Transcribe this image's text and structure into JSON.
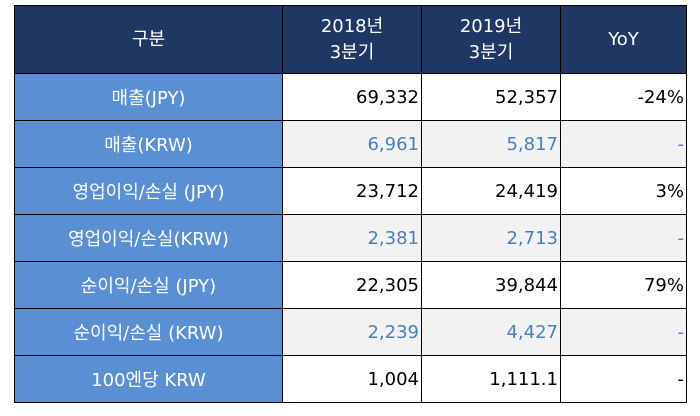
{
  "table": {
    "header": [
      "구분",
      "2018년\n3분기",
      "2019년\n3분기",
      "YoY"
    ],
    "rows": [
      [
        "매출(JPY)",
        "69,332",
        "52,357",
        "-24%"
      ],
      [
        "매출(KRW)",
        "6,961",
        "5,817",
        "-"
      ],
      [
        "영업이익/손실 (JPY)",
        "23,712",
        "24,419",
        "3%"
      ],
      [
        "영업이익/손실(KRW)",
        "2,381",
        "2,713",
        "-"
      ],
      [
        "순이익/손실 (JPY)",
        "22,305",
        "39,844",
        "79%"
      ],
      [
        "순이익/손실 (KRW)",
        "2,239",
        "4,427",
        "-"
      ],
      [
        "100엔당 KRW",
        "1,004",
        "1,111.1",
        "-"
      ]
    ]
  }
}
